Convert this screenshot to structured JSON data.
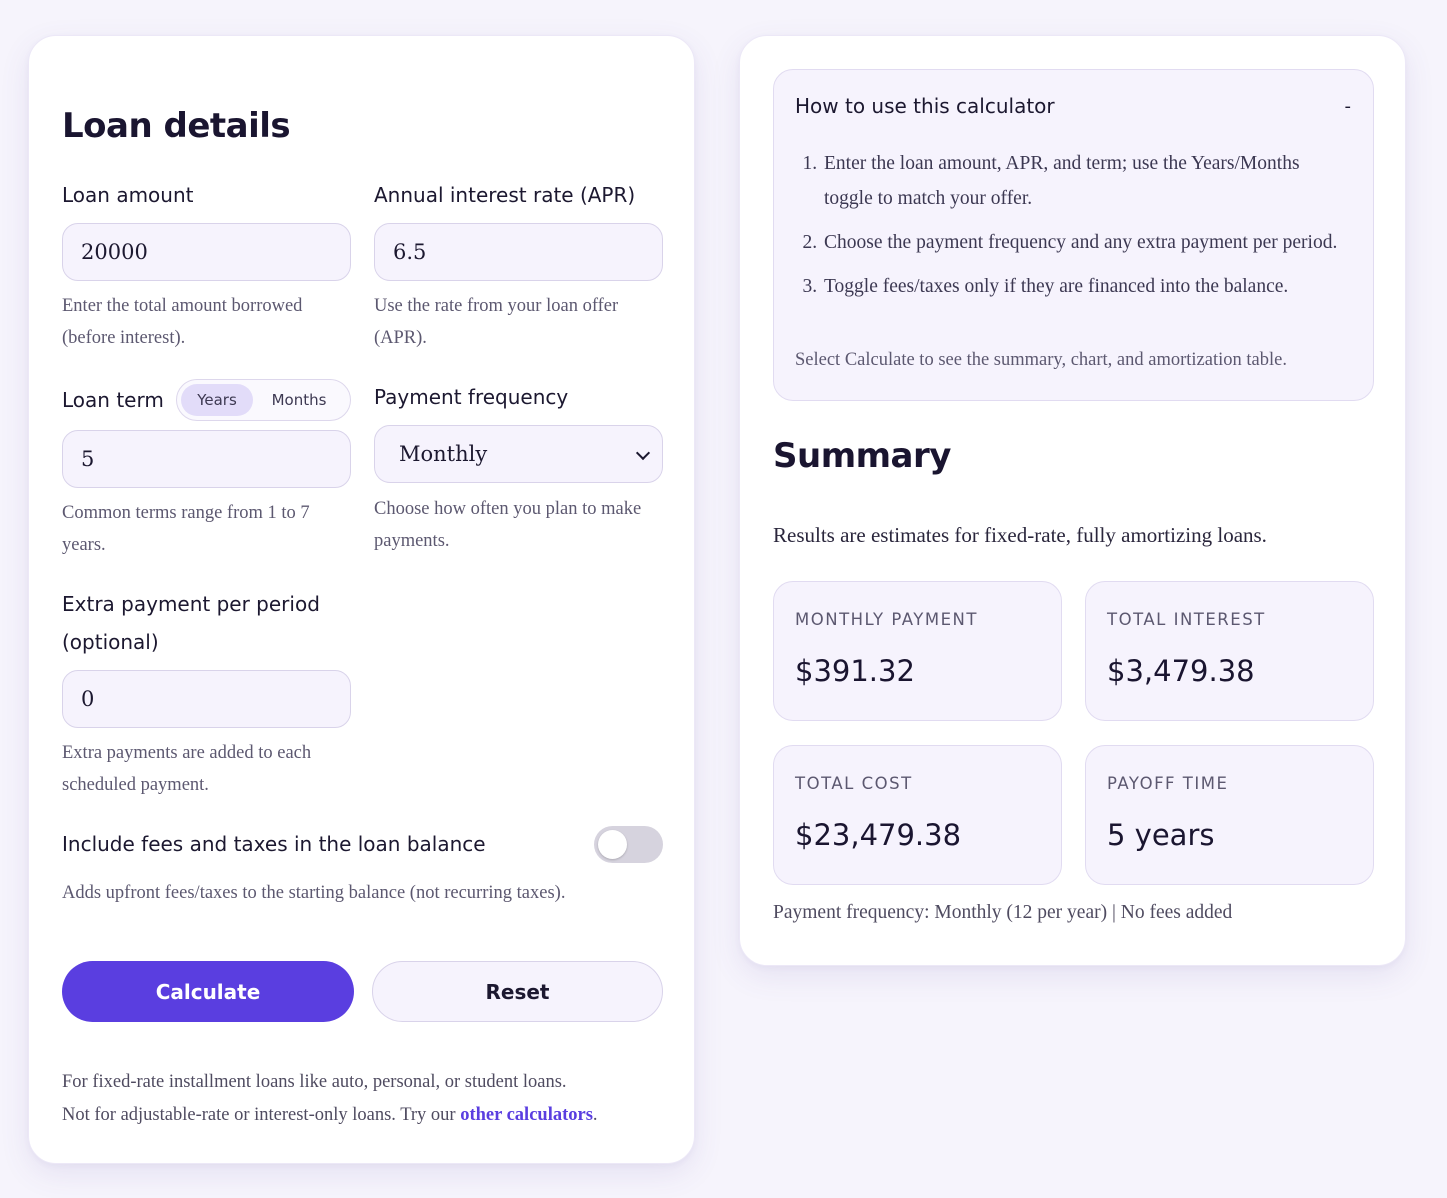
{
  "loan": {
    "title": "Loan details",
    "amount": {
      "label": "Loan amount",
      "value": "20000",
      "hint": "Enter the total amount borrowed (before interest)."
    },
    "apr": {
      "label": "Annual interest rate (APR)",
      "value": "6.5",
      "hint": "Use the rate from your loan offer (APR)."
    },
    "term": {
      "label": "Loan term",
      "value": "5",
      "unit_years": "Years",
      "unit_months": "Months",
      "selected_unit": "Years",
      "hint": "Common terms range from 1 to 7 years."
    },
    "frequency": {
      "label": "Payment frequency",
      "value": "Monthly",
      "hint": "Choose how often you plan to make payments."
    },
    "extra": {
      "label": "Extra payment per period (optional)",
      "value": "0",
      "hint": "Extra payments are added to each scheduled payment."
    },
    "fees": {
      "label": "Include fees and taxes in the loan balance",
      "enabled": false,
      "hint": "Adds upfront fees/taxes to the starting balance (not recurring taxes)."
    },
    "calculate_label": "Calculate",
    "reset_label": "Reset",
    "footnote_line1": "For fixed-rate installment loans like auto, personal, or student loans.",
    "footnote_line2_prefix": "Not for adjustable-rate or interest-only loans. Try our ",
    "footnote_link": "other calculators",
    "footnote_line2_suffix": "."
  },
  "howto": {
    "title": "How to use this calculator",
    "toggle_symbol": "-",
    "steps": [
      "Enter the loan amount, APR, and term; use the Years/Months toggle to match your offer.",
      "Choose the payment frequency and any extra payment per period.",
      "Toggle fees/taxes only if they are financed into the balance."
    ],
    "note": "Select Calculate to see the summary, chart, and amortization table."
  },
  "summary": {
    "title": "Summary",
    "intro": "Results are estimates for fixed-rate, fully amortizing loans.",
    "stats": [
      {
        "label": "MONTHLY PAYMENT",
        "value": "$391.32"
      },
      {
        "label": "TOTAL INTEREST",
        "value": "$3,479.38"
      },
      {
        "label": "TOTAL COST",
        "value": "$23,479.38"
      },
      {
        "label": "PAYOFF TIME",
        "value": "5 years"
      }
    ],
    "frequency_note": "Payment frequency: Monthly (12 per year) | No fees added"
  },
  "colors": {
    "accent": "#5a3ee0",
    "background": "#f6f4fc",
    "field_bg": "#f6f3fd"
  }
}
